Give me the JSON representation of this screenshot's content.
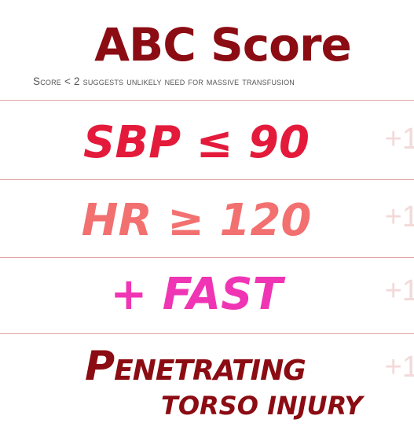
{
  "title": "ABC Score",
  "subtitle": "Score < 2 suggests unlikely need for massive transfusion",
  "criteria": [
    {
      "label": "SBP ≤ 90",
      "points": "+1",
      "color": "#e41a3b"
    },
    {
      "label": "HR ≥ 120",
      "points": "+1",
      "color": "#f27070"
    },
    {
      "label": "+ FAST",
      "points": "+1",
      "color": "#f035b4"
    },
    {
      "label_line1": "Penetrating",
      "label_line2": "torso injury",
      "points": "+1",
      "color": "#8b0c13"
    }
  ]
}
